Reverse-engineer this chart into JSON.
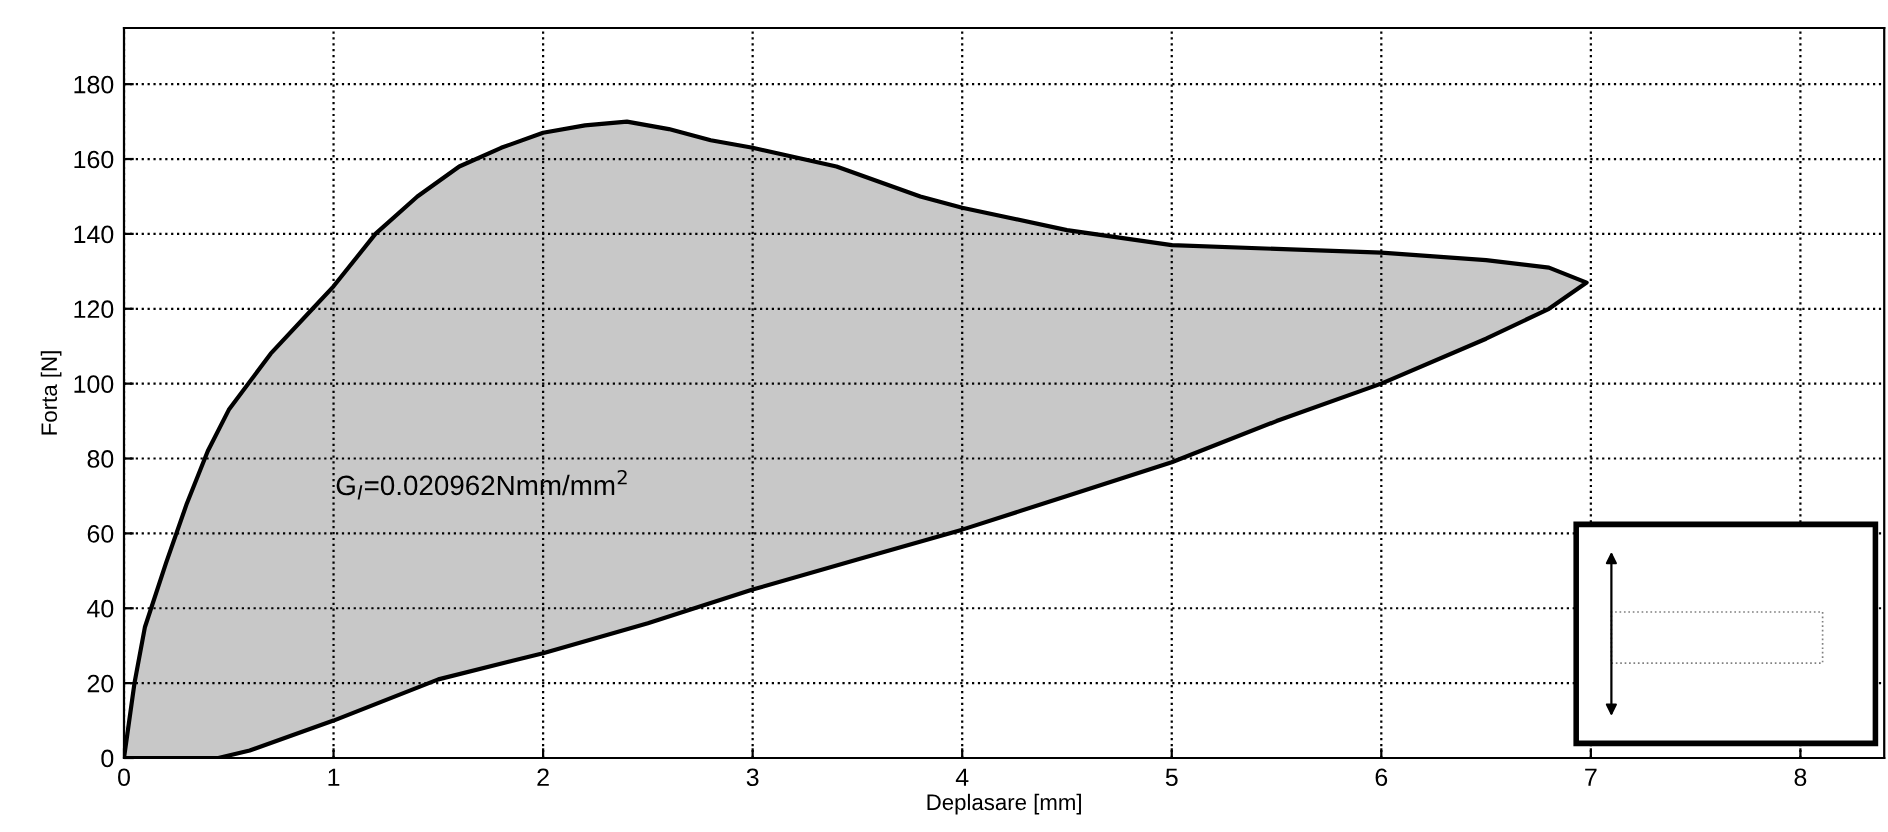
{
  "chart_data": {
    "type": "area",
    "xlabel": "Deplasare [mm]",
    "ylabel": "Forta [N]",
    "annotations": [
      "G$_{I}$=0.020962Nmm/mm$^{2}$"
    ],
    "series": [
      {
        "color": "#c8c8c8",
        "x": [
          0,
          0.05,
          0.1,
          0.2,
          0.3,
          0.4,
          0.5,
          0.7,
          0.9,
          1.0,
          1.2,
          1.4,
          1.6,
          1.8,
          2.0,
          2.2,
          2.4,
          2.6,
          2.8,
          3.0,
          3.4,
          3.8,
          4.0,
          4.5,
          5.0,
          5.5,
          6.0,
          6.5,
          6.8,
          6.98,
          6.8,
          6.5,
          6.0,
          5.5,
          5.0,
          4.5,
          4.0,
          3.5,
          3.0,
          2.5,
          2.0,
          1.5,
          1.0,
          0.8,
          0.6,
          0.45,
          0
        ],
        "values": [
          0,
          20,
          35,
          52,
          68,
          82,
          93,
          108,
          120,
          126,
          140,
          150,
          158,
          163,
          167,
          169,
          170,
          168,
          165,
          163,
          158,
          150,
          147,
          141,
          137,
          136,
          135,
          133,
          131,
          127,
          120,
          112,
          100,
          90,
          79,
          70,
          61,
          53,
          45,
          36,
          28,
          21,
          10,
          6,
          2,
          0,
          0
        ]
      }
    ],
    "xlim": [
      0,
      8.4
    ],
    "xticks": [
      0,
      1,
      2,
      3,
      4,
      5,
      6,
      7,
      8
    ],
    "ylim": [
      0,
      195
    ],
    "yticks": [
      0,
      20,
      40,
      60,
      80,
      100,
      120,
      140,
      160,
      180
    ],
    "grid": true,
    "line_style": "solid"
  }
}
